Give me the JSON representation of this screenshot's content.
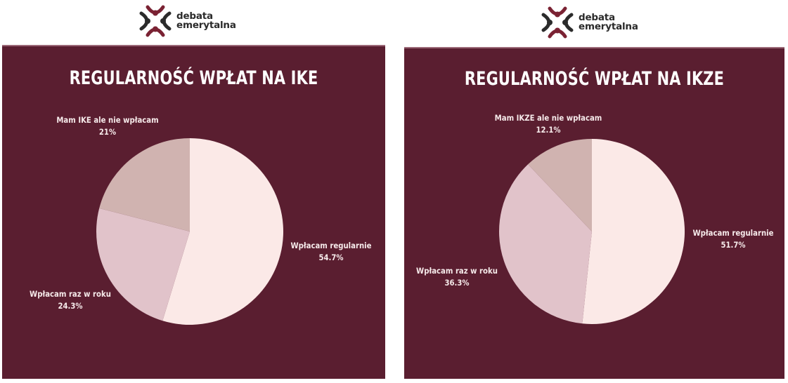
{
  "brand": {
    "line1": "debata",
    "line2": "emerytalna",
    "primary_color": "#5a1e30",
    "icon_dark": "#2b2b2b",
    "icon_accent": "#7a2233"
  },
  "charts": [
    {
      "title": "REGULARNOŚĆ WPŁAT NA IKE",
      "slices": [
        {
          "label": "Wpłacam regularnie",
          "value_label": "54.7%",
          "color": "#fbe9e7"
        },
        {
          "label": "Wpłacam raz w roku",
          "value_label": "24.3%",
          "color": "#e1c3ca"
        },
        {
          "label": "Mam IKE ale nie wpłacam",
          "value_label": "21%",
          "color": "#d0b3b0"
        }
      ]
    },
    {
      "title": "REGULARNOŚĆ WPŁAT NA IKZE",
      "slices": [
        {
          "label": "Wpłacam regularnie",
          "value_label": "51.7%",
          "color": "#fbe9e7"
        },
        {
          "label": "Wpłacam raz w roku",
          "value_label": "36.3%",
          "color": "#e1c3ca"
        },
        {
          "label": "Mam IKZE ale nie wpłacam",
          "value_label": "12.1%",
          "color": "#d0b3b0"
        }
      ]
    }
  ],
  "chart_data": [
    {
      "type": "pie",
      "title": "REGULARNOŚĆ WPŁAT NA IKE",
      "categories": [
        "Wpłacam regularnie",
        "Wpłacam raz w roku",
        "Mam IKE ale nie wpłacam"
      ],
      "values": [
        54.7,
        24.3,
        21.0
      ],
      "unit": "%",
      "colors": [
        "#fbe9e7",
        "#e1c3ca",
        "#d0b3b0"
      ],
      "start_angle": "12 o'clock, clockwise",
      "legend": "none (direct labels)",
      "background": "#5a1e30"
    },
    {
      "type": "pie",
      "title": "REGULARNOŚĆ WPŁAT NA IKZE",
      "categories": [
        "Wpłacam regularnie",
        "Wpłacam raz w roku",
        "Mam IKZE ale nie wpłacam"
      ],
      "values": [
        51.7,
        36.3,
        12.1
      ],
      "unit": "%",
      "colors": [
        "#fbe9e7",
        "#e1c3ca",
        "#d0b3b0"
      ],
      "start_angle": "12 o'clock, clockwise",
      "legend": "none (direct labels)",
      "background": "#5a1e30"
    }
  ]
}
